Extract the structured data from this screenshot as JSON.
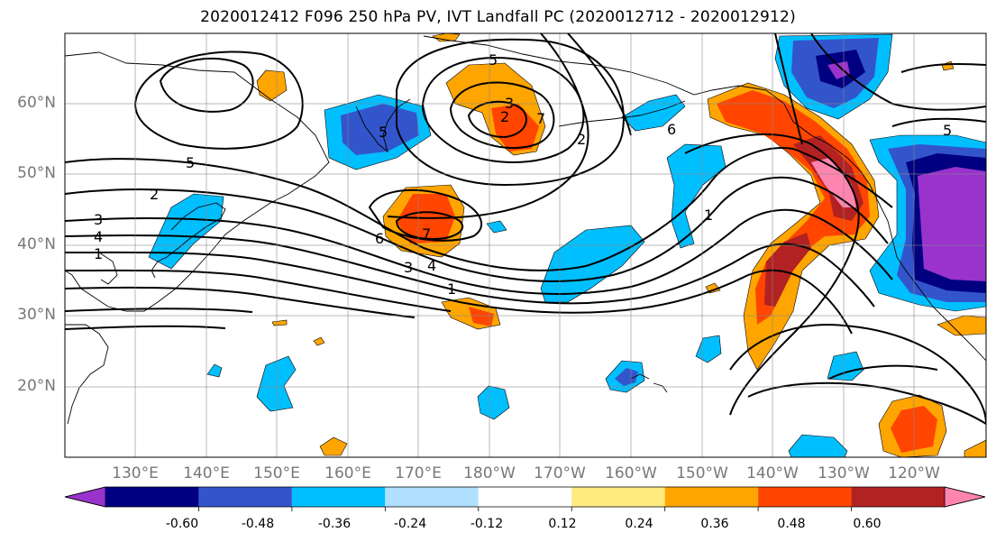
{
  "title": "2020012412 F096 250 hPa PV, IVT Landfall PC (2020012712 - 2020012912)",
  "map": {
    "projection": "PlateCarree",
    "lon_range": [
      120,
      250
    ],
    "lat_range": [
      10,
      70
    ],
    "gridlines": true,
    "coastlines": true,
    "lat_ticks": [
      "60°N",
      "50°N",
      "40°N",
      "30°N",
      "20°N"
    ],
    "lon_ticks": [
      "130°E",
      "140°E",
      "150°E",
      "160°E",
      "170°E",
      "180°W",
      "170°W",
      "160°W",
      "150°W",
      "140°W",
      "130°W",
      "120°W"
    ],
    "shading_variable": "IVT Landfall PC",
    "contour_variable": "250 hPa PV",
    "contour_labels": [
      "5",
      "2",
      "3",
      "4",
      "1",
      "5",
      "5",
      "3",
      "2",
      "2",
      "7",
      "6",
      "7",
      "3",
      "4",
      "1",
      "6",
      "1",
      "5"
    ]
  },
  "colorbar": {
    "orientation": "horizontal",
    "extend": "both",
    "levels": [
      "-0.60",
      "-0.48",
      "-0.36",
      "-0.24",
      "-0.12",
      "0.12",
      "0.24",
      "0.36",
      "0.48",
      "0.60"
    ],
    "colors": [
      "#9933cc",
      "#000080",
      "#3355cc",
      "#00bfff",
      "#b0e0ff",
      "#ffffff",
      "#ffeb80",
      "#ffa500",
      "#ff4500",
      "#b22222",
      "#ff85b0"
    ]
  }
}
